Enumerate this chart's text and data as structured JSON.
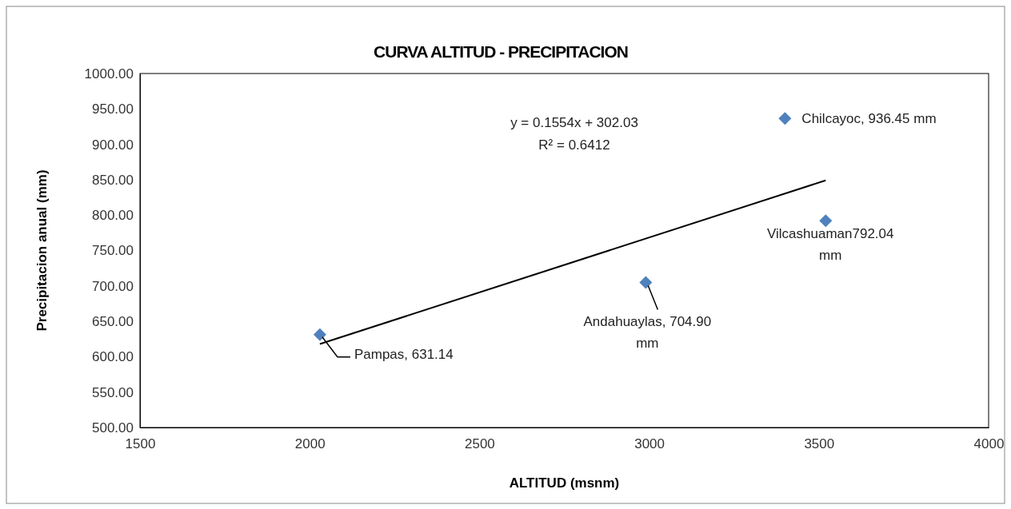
{
  "chart_data": {
    "type": "scatter",
    "title": "CURVA ALTITUD - PRECIPITACION",
    "xlabel": "ALTITUD (msnm)",
    "ylabel": "Precipitacion anual (mm)",
    "xlim": [
      1500,
      4000
    ],
    "xticks": [
      1500,
      2000,
      2500,
      3000,
      3500,
      4000
    ],
    "ylim": [
      500,
      1000
    ],
    "yticks": [
      {
        "value": 500,
        "label": "500.00"
      },
      {
        "value": 550,
        "label": "550.00"
      },
      {
        "value": 600,
        "label": "600.00"
      },
      {
        "value": 650,
        "label": "650.00"
      },
      {
        "value": 700,
        "label": "700.00"
      },
      {
        "value": 750,
        "label": "750.00"
      },
      {
        "value": 800,
        "label": "800.00"
      },
      {
        "value": 850,
        "label": "850.00"
      },
      {
        "value": 900,
        "label": "900.00"
      },
      {
        "value": 950,
        "label": "950.00"
      },
      {
        "value": 1000,
        "label": "1000.00"
      }
    ],
    "grid": false,
    "series": [
      {
        "marker": "diamond",
        "color": "#4f81bd",
        "x": [
          2030,
          2990,
          3520,
          3400
        ],
        "values": [
          631.14,
          704.9,
          792.04,
          936.45
        ]
      },
      {
        "type": "line",
        "color": "#000000",
        "x": [
          2030,
          3520
        ],
        "values": [
          618,
          849
        ],
        "line_style": "solid"
      }
    ],
    "annotations": [
      {
        "text": "Pampas, 631.14",
        "x": 2030,
        "y": 631.14
      },
      {
        "text": "Andahuaylas, 704.90 mm",
        "x": 2990,
        "y": 704.9
      },
      {
        "text": "Vilcashuaman792.04 mm",
        "x": 3520,
        "y": 792.04
      },
      {
        "text": "Chilcayoc, 936.45 mm",
        "x": 3400,
        "y": 936.45
      },
      "y = 0.1554x + 302.03",
      "R² = 0.6412"
    ]
  }
}
